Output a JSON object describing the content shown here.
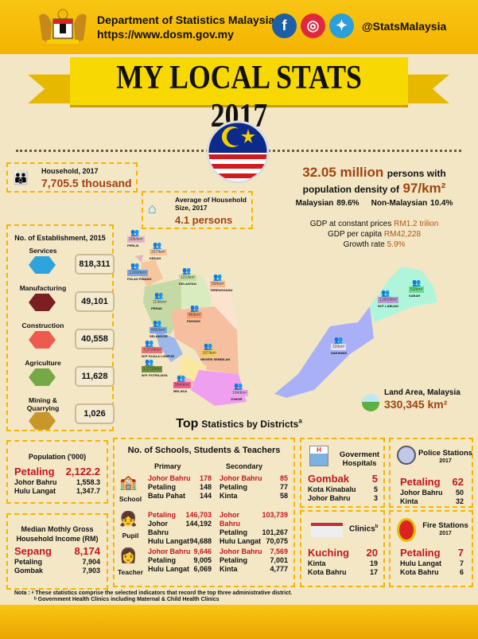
{
  "header": {
    "org": "Department of Statistics Malaysia",
    "url": "https://www.dosm.gov.my",
    "handle": "@StatsMalaysia",
    "social": [
      {
        "icon": "facebook-icon",
        "glyph": "f",
        "color": "#1c5fa6"
      },
      {
        "icon": "instagram-icon",
        "glyph": "◎",
        "color": "#e0283d"
      },
      {
        "icon": "twitter-icon",
        "glyph": "✦",
        "color": "#2a9fd8"
      }
    ]
  },
  "title": "MY LOCAL STATS 2017",
  "household": {
    "label": "Household, 2017",
    "value": "7,705.5 thousand"
  },
  "hh_size": {
    "label": "Average of Household Size, 2017",
    "value": "4.1 persons"
  },
  "population": {
    "value": "32.05 million",
    "text1": "persons with",
    "text2": "population density of",
    "density": "97/km²",
    "malaysian": "Malaysian 89.6%",
    "non_malaysian": "Non-Malaysian 10.4%"
  },
  "gdp": {
    "const_label": "GDP at constant prices",
    "const_value": "RM1.2 trilion",
    "capita_label": "GDP per capita",
    "capita_value": "RM42,228",
    "growth_label": "Growth rate",
    "growth_value": "5.9%"
  },
  "establishment": {
    "title": "No. of Establishment, 2015",
    "items": [
      {
        "label": "Services",
        "value": "818,311",
        "color": "#2ea3dc"
      },
      {
        "label": "Manufacturing",
        "value": "49,101",
        "color": "#7a1f22"
      },
      {
        "label": "Construction",
        "value": "40,558",
        "color": "#ee5a4f"
      },
      {
        "label": "Agriculture",
        "value": "11,628",
        "color": "#76a845"
      },
      {
        "label": "Mining & Quarrying",
        "value": "1,026",
        "color": "#c9962b"
      }
    ]
  },
  "map": {
    "states": [
      {
        "name": "PERLIS",
        "density": "308/km²",
        "color": "#e8b4c4"
      },
      {
        "name": "KEDAH",
        "density": "227/km²",
        "color": "#f6c79e"
      },
      {
        "name": "PULAU PINANG",
        "density": "1,692/km²",
        "color": "#7ea6e0"
      },
      {
        "name": "KELANTAN",
        "density": "121/km²",
        "color": "#c8dca0"
      },
      {
        "name": "TERENGGANU",
        "density": "93/km²",
        "color": "#f6b98a"
      },
      {
        "name": "PERAK",
        "density": "119/km²",
        "color": "#c5d9a5"
      },
      {
        "name": "PAHANG",
        "density": "46/km²",
        "color": "#f29e6a"
      },
      {
        "name": "SELANGOR",
        "density": "805/km²",
        "color": "#7ea6e0"
      },
      {
        "name": "W.P. KUALA LUMPUR",
        "density": "7,372/km²",
        "color": "#f06f78"
      },
      {
        "name": "W.P. PUTRAJAYA",
        "density": "1,773/km²",
        "color": "#6f8f3c"
      },
      {
        "name": "NEGERI SEMBILAN",
        "density": "167/km²",
        "color": "#f9cc5a"
      },
      {
        "name": "MELAKA",
        "density": "554/km²",
        "color": "#ef5c8c"
      },
      {
        "name": "JOHOR",
        "density": "194/km²",
        "color": "#e7a7e8"
      },
      {
        "name": "SARAWAK",
        "density": "22/km²",
        "color": "#e6e2ef"
      },
      {
        "name": "SABAH",
        "density": "52/km²",
        "color": "#66dd88"
      },
      {
        "name": "W.P. LABUAN",
        "density": "1,062/km²",
        "color": "#b69ad0"
      }
    ]
  },
  "land": {
    "label": "Land Area, Malaysia",
    "value": "330,345 km²"
  },
  "districts_title": {
    "bold": "Top",
    "rest": "Statistics by Districts",
    "sup": "a"
  },
  "pop_district": {
    "title": "Population ('000)",
    "rows": [
      [
        "Petaling",
        "2,122.2"
      ],
      [
        "Johor Bahru",
        "1,558.3"
      ],
      [
        "Hulu Langat",
        "1,347.7"
      ]
    ]
  },
  "income": {
    "title": "Median Mothly Gross Household Income (RM)",
    "rows": [
      [
        "Sepang",
        "8,174"
      ],
      [
        "Petaling",
        "7,904"
      ],
      [
        "Gombak",
        "7,903"
      ]
    ]
  },
  "schools": {
    "title": "No. of Schools,  Students &  Teachers",
    "primary": "Primary",
    "secondary": "Secondary",
    "groups": [
      {
        "label": "School",
        "primary": [
          [
            "Johor Bahru",
            "178"
          ],
          [
            "Petaling",
            "148"
          ],
          [
            "Batu Pahat",
            "144"
          ]
        ],
        "secondary": [
          [
            "Johor Bahru",
            "85"
          ],
          [
            "Petaling",
            "77"
          ],
          [
            "Kinta",
            "58"
          ]
        ]
      },
      {
        "label": "Pupil",
        "primary": [
          [
            "Petaling",
            "146,703"
          ],
          [
            "Johor Bahru",
            "144,192"
          ],
          [
            "Hulu Langat",
            "94,688"
          ]
        ],
        "secondary": [
          [
            "Johor Bahru",
            "103,739"
          ],
          [
            "Petaling",
            "101,267"
          ],
          [
            "Hulu Langat",
            "70,075"
          ]
        ]
      },
      {
        "label": "Teacher",
        "primary": [
          [
            "Johor Bahru",
            "9,646"
          ],
          [
            "Petaling",
            "9,005"
          ],
          [
            "Hulu Langat",
            "6,069"
          ]
        ],
        "secondary": [
          [
            "Johor Bahru",
            "7,569"
          ],
          [
            "Petaling",
            "7,001"
          ],
          [
            "Kinta",
            "4,777"
          ]
        ]
      }
    ]
  },
  "hospitals": {
    "title": "Goverment Hospitals",
    "rows": [
      [
        "Gombak",
        "5"
      ],
      [
        "Kota Kinabalu",
        "5"
      ],
      [
        "Johor Bahru",
        "3"
      ]
    ]
  },
  "police": {
    "title": "Police Stations",
    "year": "2017",
    "rows": [
      [
        "Petaling",
        "62"
      ],
      [
        "Johor Bahru",
        "50"
      ],
      [
        "Kinta",
        "32"
      ]
    ]
  },
  "clinics": {
    "title": "Clinics",
    "sup": "b",
    "rows": [
      [
        "Kuching",
        "20"
      ],
      [
        "Kinta",
        "19"
      ],
      [
        "Kota Bahru",
        "17"
      ]
    ]
  },
  "fire": {
    "title": "Fire Stations",
    "year": "2017",
    "rows": [
      [
        "Petaling",
        "7"
      ],
      [
        "Hulu Langat",
        "7"
      ],
      [
        "Kota Bahru",
        "6"
      ]
    ]
  },
  "notes": {
    "a": "Nota : ᵃ These statistics comprise the selected indicators that record the top three administrative district.",
    "b": "ᵇ Government Health Clinics including Maternal &  Child Health Clinics"
  }
}
